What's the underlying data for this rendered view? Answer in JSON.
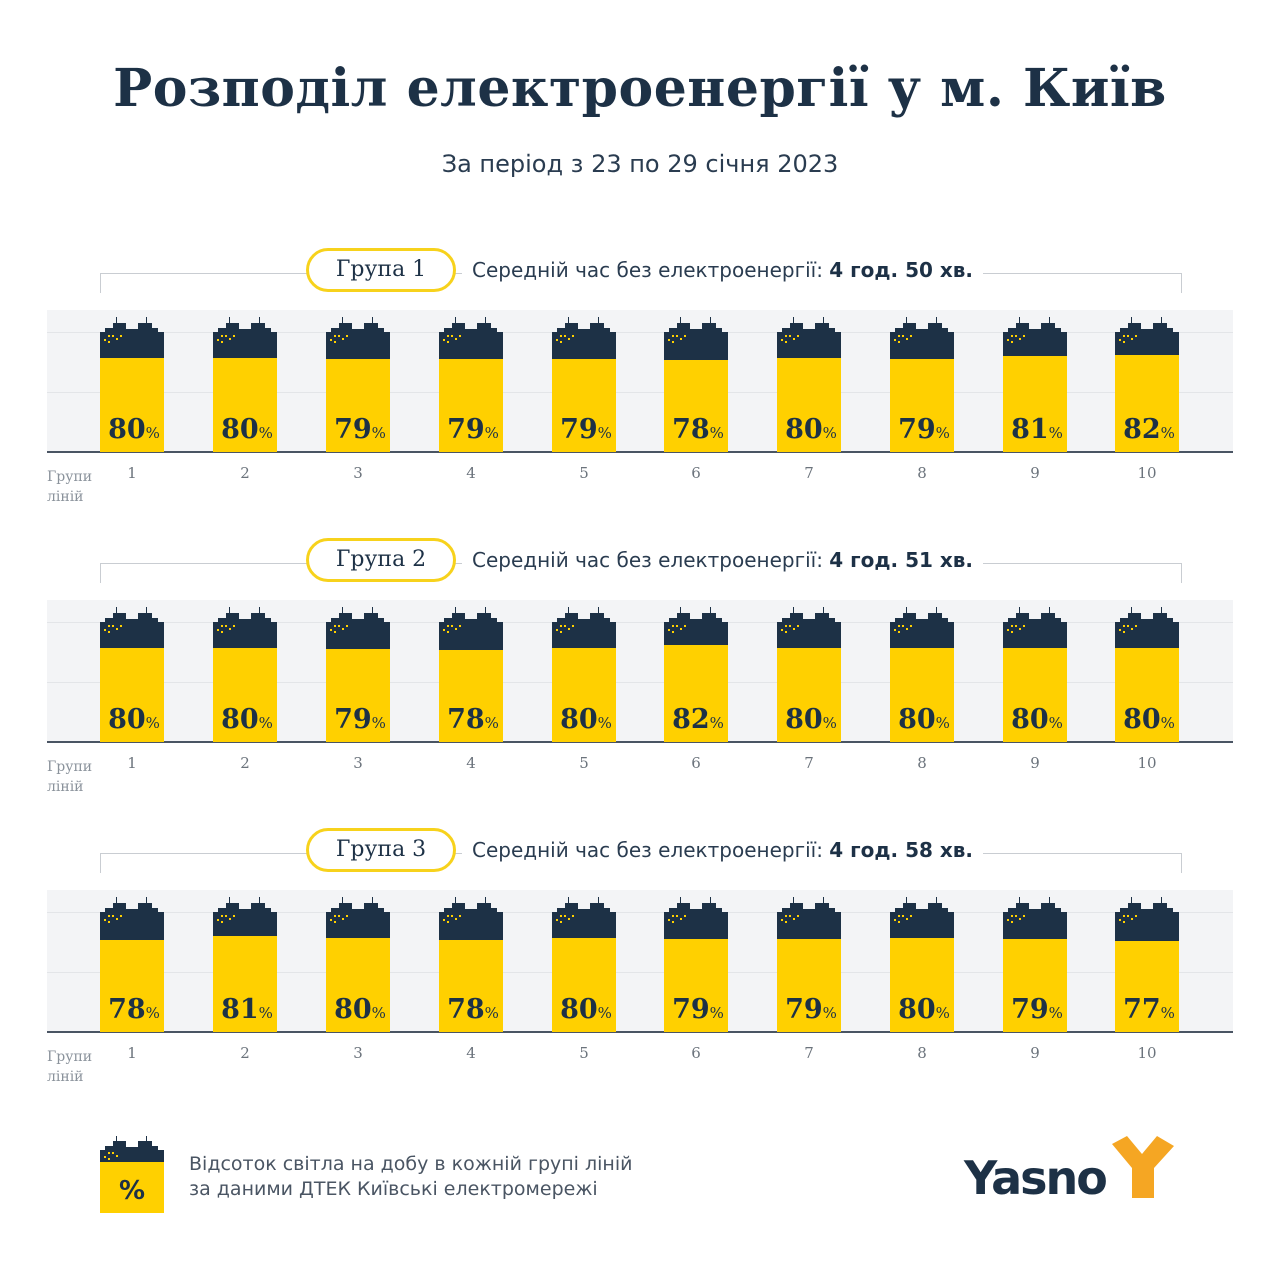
{
  "header": {
    "title": "Розподіл електроенергії у м. Київ",
    "subtitle": "За період з 23 по 29 січня 2023"
  },
  "colors": {
    "light": "#ffd000",
    "dark": "#1d3146",
    "pill_border": "#f7d21c",
    "logo_accent": "#f5a623"
  },
  "chart_data": [
    {
      "type": "bar",
      "title": "Група 1",
      "avg_label": "Середній час без електроенергії:",
      "avg_value": "4 год. 50 хв.",
      "xlabel": "Групи ліній",
      "categories": [
        "1",
        "2",
        "3",
        "4",
        "5",
        "6",
        "7",
        "8",
        "9",
        "10"
      ],
      "values": [
        80,
        80,
        79,
        79,
        79,
        78,
        80,
        79,
        81,
        82
      ],
      "unit": "%"
    },
    {
      "type": "bar",
      "title": "Група 2",
      "avg_label": "Середній час без електроенергії:",
      "avg_value": "4 год. 51 хв.",
      "xlabel": "Групи ліній",
      "categories": [
        "1",
        "2",
        "3",
        "4",
        "5",
        "6",
        "7",
        "8",
        "9",
        "10"
      ],
      "values": [
        80,
        80,
        79,
        78,
        80,
        82,
        80,
        80,
        80,
        80
      ],
      "unit": "%"
    },
    {
      "type": "bar",
      "title": "Група 3",
      "avg_label": "Середній час без електроенергії:",
      "avg_value": "4 год. 58 хв.",
      "xlabel": "Групи ліній",
      "categories": [
        "1",
        "2",
        "3",
        "4",
        "5",
        "6",
        "7",
        "8",
        "9",
        "10"
      ],
      "values": [
        78,
        81,
        80,
        78,
        80,
        79,
        79,
        80,
        79,
        77
      ],
      "unit": "%"
    }
  ],
  "legend": {
    "symbol": "%",
    "line1": "Відсоток світла на добу в кожній групі ліній",
    "line2": "за даними ДТЕК Київські електромережі"
  },
  "logo": {
    "text": "Yasno"
  }
}
